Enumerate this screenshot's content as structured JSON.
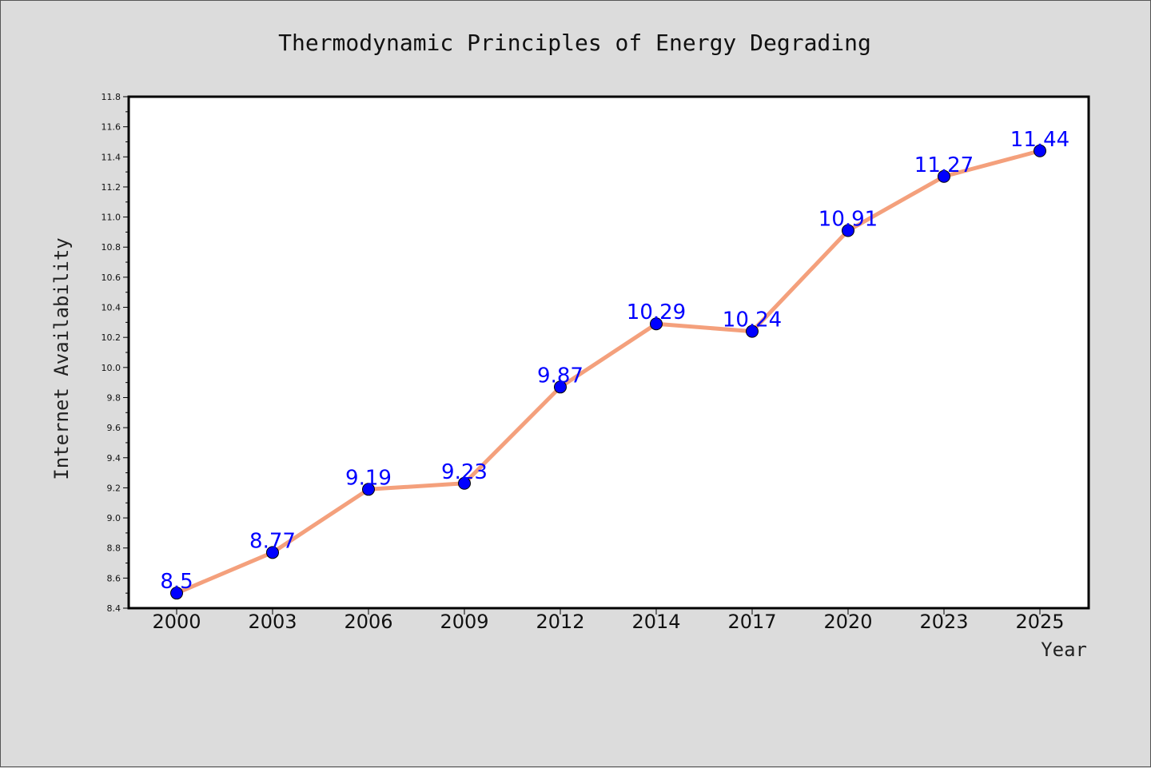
{
  "chart_data": {
    "type": "line",
    "title": "Thermodynamic Principles of Energy Degrading",
    "xlabel": "Year",
    "ylabel": "Internet Availability",
    "categories": [
      "2000",
      "2003",
      "2006",
      "2009",
      "2012",
      "2014",
      "2017",
      "2020",
      "2023",
      "2025"
    ],
    "series": [
      {
        "values": [
          8.5,
          8.77,
          9.19,
          9.23,
          9.87,
          10.29,
          10.24,
          10.91,
          11.27,
          11.44
        ],
        "labels": [
          "8.5",
          "8.77",
          "9.19",
          "9.23",
          "9.87",
          "10.29",
          "10.24",
          "10.91",
          "11.27",
          "11.44"
        ]
      }
    ],
    "ylim": [
      8.4,
      11.8
    ],
    "yticks": [
      "8.4",
      "8.6",
      "8.8",
      "9.0",
      "9.2",
      "9.4",
      "9.6",
      "9.8",
      "10.0",
      "10.2",
      "10.4",
      "10.6",
      "10.8",
      "11.0",
      "11.2",
      "11.4",
      "11.6",
      "11.8"
    ],
    "grid": false,
    "colors": {
      "line": "#f4a07c",
      "marker": "#0000ff",
      "data_label": "#0000ff",
      "plot_background": "#ffffff",
      "figure_background": "#dcdcdc"
    }
  }
}
